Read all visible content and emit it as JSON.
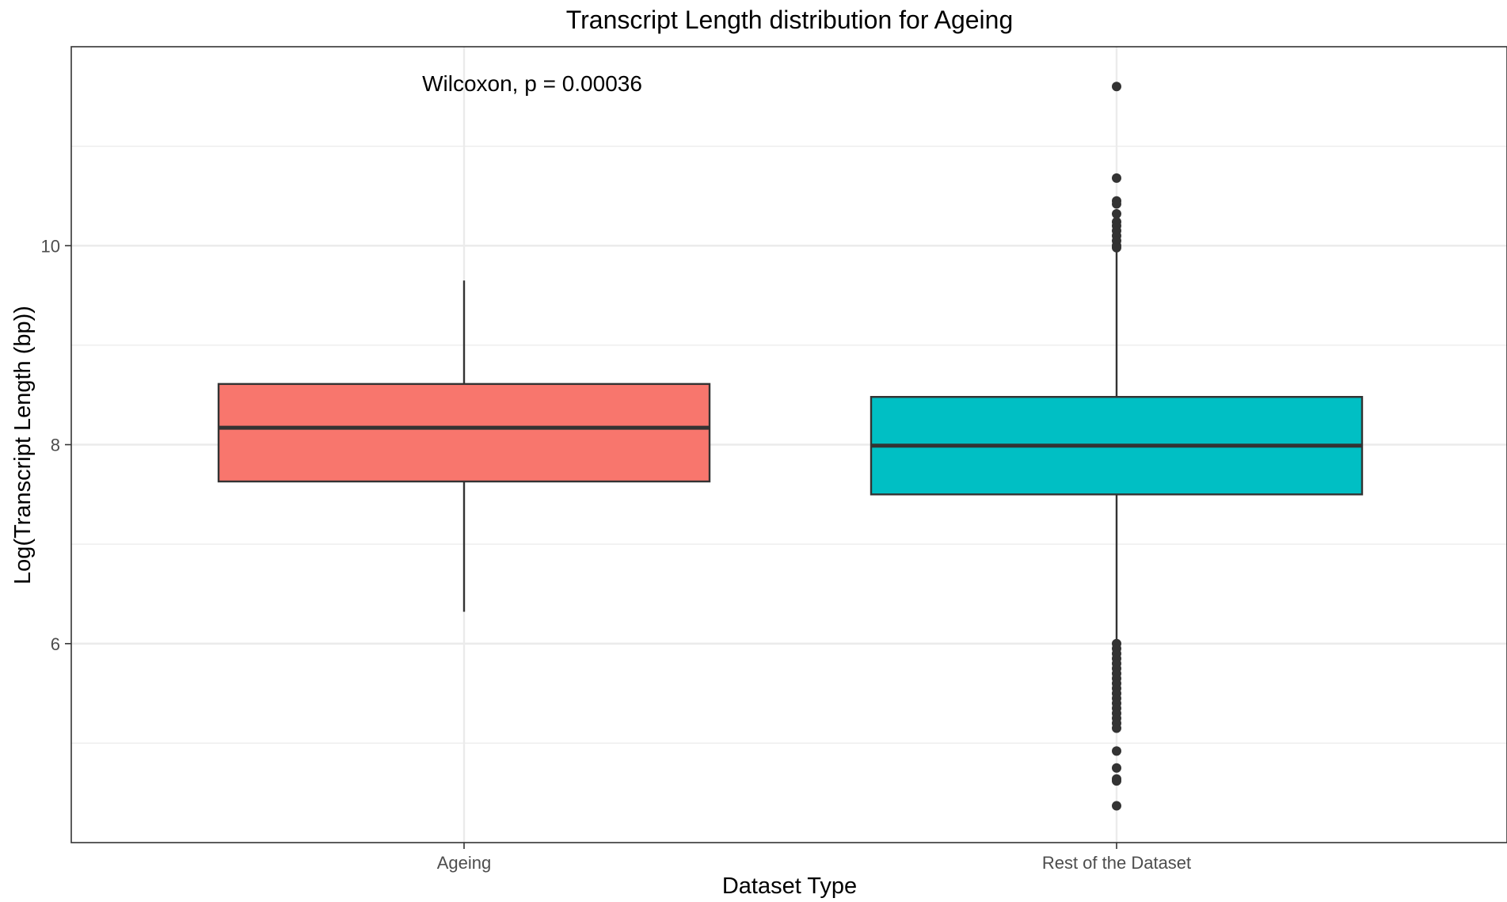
{
  "chart_data": {
    "type": "boxplot",
    "title": "Transcript Length distribution for Ageing",
    "xlabel": "Dataset Type",
    "ylabel": "Log(Transcript Length (bp))",
    "categories": [
      "Ageing",
      "Rest of the Dataset"
    ],
    "ylim": [
      4.0,
      12.0
    ],
    "y_ticks": [
      6,
      8,
      10
    ],
    "y_tick_labels": [
      "6",
      "8",
      "10"
    ],
    "y_minor_ticks": [
      5,
      7,
      9,
      11
    ],
    "grid": true,
    "legend": "none",
    "annotation": "Wilcoxon, p = 0.00036",
    "annotation_position": {
      "category": "Ageing",
      "y": 11.6
    },
    "boxes": [
      {
        "category": "Ageing",
        "fill": "#F8766D",
        "q1": 7.63,
        "median": 8.17,
        "q3": 8.61,
        "whisker_low": 6.32,
        "whisker_high": 9.65,
        "outliers": []
      },
      {
        "category": "Rest of the Dataset",
        "fill": "#00BFC4",
        "q1": 7.5,
        "median": 7.99,
        "q3": 8.48,
        "whisker_low": 6.02,
        "whisker_high": 9.96,
        "outliers": [
          11.6,
          10.68,
          10.45,
          10.42,
          10.32,
          10.24,
          10.2,
          10.15,
          10.1,
          10.05,
          10.0,
          9.98,
          6.0,
          5.95,
          5.9,
          5.85,
          5.8,
          5.75,
          5.7,
          5.65,
          5.6,
          5.55,
          5.5,
          5.45,
          5.4,
          5.35,
          5.3,
          5.25,
          5.2,
          5.15,
          4.92,
          4.75,
          4.64,
          4.62,
          4.37
        ]
      }
    ]
  },
  "colors": {
    "panel_border": "#333333",
    "grid": "#ebebeb",
    "box_stroke": "#333333",
    "outlier": "#333333"
  }
}
